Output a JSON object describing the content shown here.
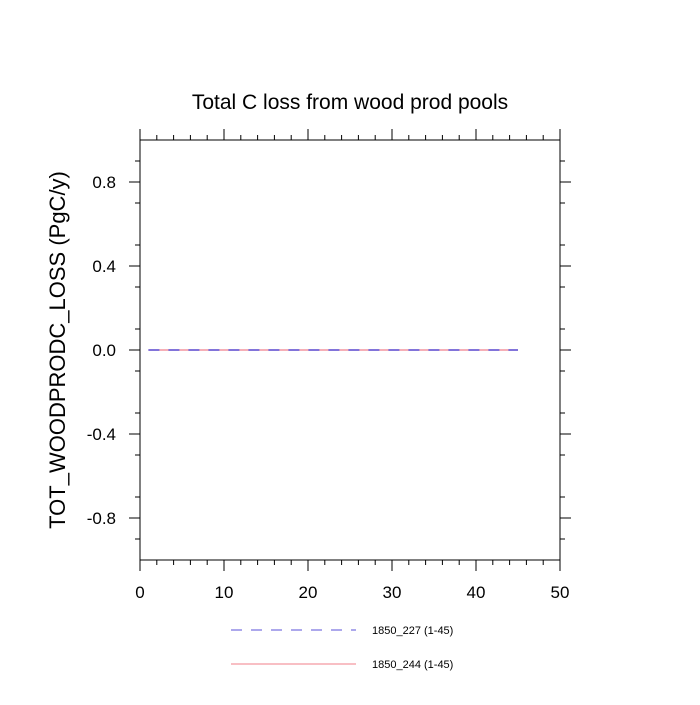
{
  "chart_data": {
    "type": "line",
    "title": "Total C loss from wood prod pools",
    "xlabel": "",
    "ylabel": "TOT_WOODPRODC_LOSS  (PgC/y)",
    "xlim": [
      0,
      50
    ],
    "ylim": [
      -1.0,
      1.0
    ],
    "x_ticks": [
      0,
      10,
      20,
      30,
      40,
      50
    ],
    "x_tick_labels": [
      "0",
      "10",
      "20",
      "30",
      "40",
      "50"
    ],
    "y_ticks": [
      -0.8,
      -0.4,
      0.0,
      0.4,
      0.8
    ],
    "y_tick_labels": [
      "-0.8",
      "-0.4",
      "0.0",
      "0.4",
      "0.8"
    ],
    "grid": false,
    "legend_position": "bottom",
    "series": [
      {
        "name": "1850_227 (1-45)",
        "color": "#5a50d8",
        "dash": "dashed",
        "x": [
          1,
          45
        ],
        "y": [
          0,
          0
        ]
      },
      {
        "name": "1850_244 (1-45)",
        "color": "#f07f8a",
        "dash": "solid",
        "x": [
          1,
          45
        ],
        "y": [
          0,
          0
        ]
      }
    ]
  }
}
